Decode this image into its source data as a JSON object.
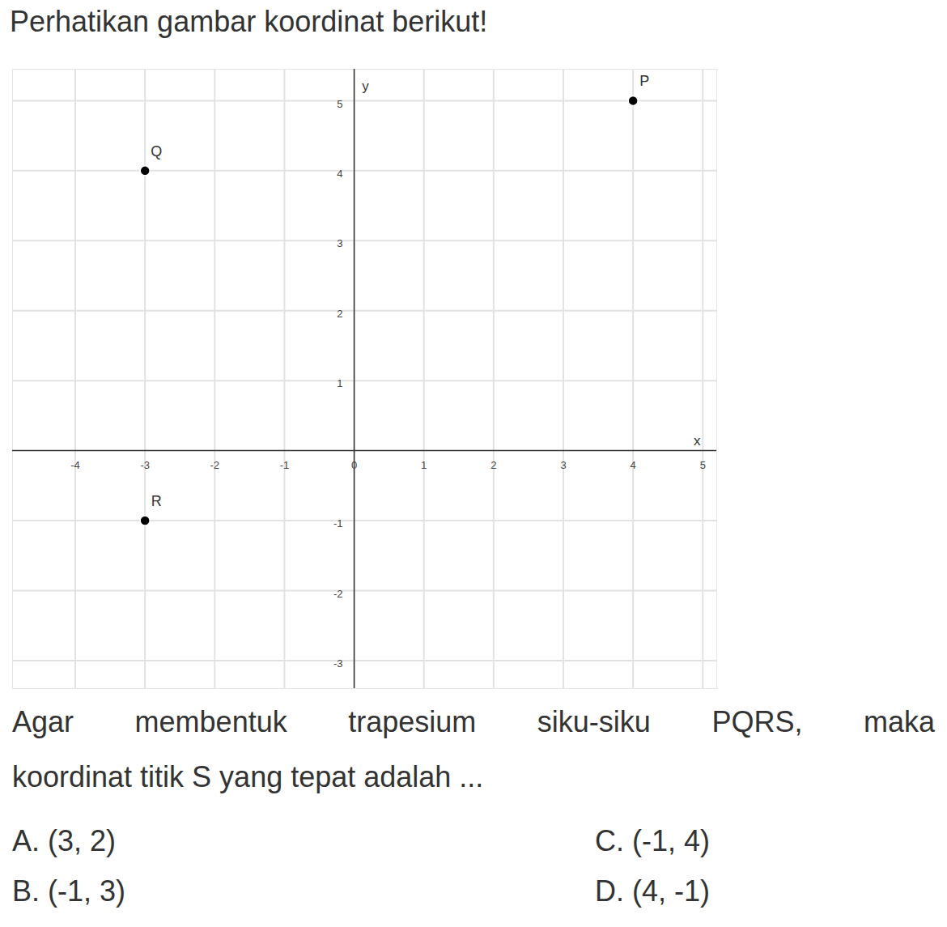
{
  "header": "Perhatikan gambar koordinat berikut!",
  "chart_data": {
    "type": "scatter",
    "points": [
      {
        "label": "P",
        "x": 4,
        "y": 5
      },
      {
        "label": "Q",
        "x": -3,
        "y": 4
      },
      {
        "label": "R",
        "x": -3,
        "y": -1
      }
    ],
    "color": "#000000",
    "x_label": "x",
    "y_label": "y",
    "xlim": [
      -4.9,
      5.2
    ],
    "ylim": [
      -3.4,
      5.45
    ],
    "xticks": [
      -4,
      -3,
      -2,
      -1,
      0,
      1,
      2,
      3,
      4,
      5
    ],
    "yticks": [
      -3,
      -2,
      -1,
      1,
      2,
      3,
      4,
      5
    ],
    "grid": true
  },
  "question": {
    "lines": [
      "Agar membentuk trapesium siku-siku PQRS, maka",
      "koordinat titik S yang tepat adalah ..."
    ],
    "options": [
      {
        "label": "A.",
        "text": "(3, 2)"
      },
      {
        "label": "B.",
        "text": "(-1, 3)"
      },
      {
        "label": "C.",
        "text": "(-1, 4)"
      },
      {
        "label": "D.",
        "text": "(4, -1)"
      }
    ]
  }
}
